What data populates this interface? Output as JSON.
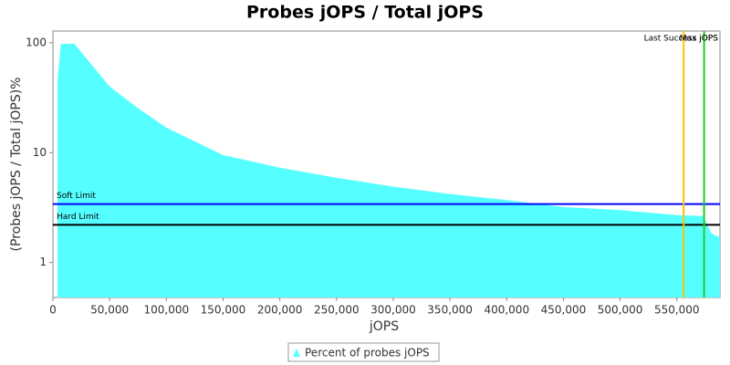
{
  "chart_data": {
    "type": "area",
    "title": "Probes jOPS / Total jOPS",
    "x_label": "jOPS",
    "y_label": "(Probes jOPS / Total jOPS)%",
    "log_y": true,
    "xlim": [
      0,
      588000
    ],
    "ylim": [
      0.48,
      128
    ],
    "xticks": [
      0,
      {
        "value": 50000,
        "label": "50,000"
      },
      {
        "value": 100000,
        "label": "100,000"
      },
      {
        "value": 150000,
        "label": "150,000"
      },
      {
        "value": 200000,
        "label": "200,000"
      },
      {
        "value": 250000,
        "label": "250,000"
      },
      {
        "value": 300000,
        "label": "300,000"
      },
      {
        "value": 350000,
        "label": "350,000"
      },
      {
        "value": 400000,
        "label": "400,000"
      },
      {
        "value": 450000,
        "label": "450,000"
      },
      {
        "value": 500000,
        "label": "500,000"
      },
      {
        "value": 550000,
        "label": "550,000"
      }
    ],
    "yticks": [
      1,
      10,
      100
    ],
    "series": [
      {
        "name": "Percent of probes jOPS",
        "color": "#55ffff",
        "x": [
          4000,
          7000,
          19000,
          30000,
          50000,
          74000,
          100000,
          150000,
          200000,
          250000,
          300000,
          350000,
          400000,
          450000,
          500000,
          550000,
          573000,
          580000,
          583000,
          588000
        ],
        "values": [
          44,
          98,
          98,
          71,
          40,
          25.8,
          16.9,
          9.5,
          7.3,
          5.9,
          4.9,
          4.2,
          3.7,
          3.2,
          3.0,
          2.7,
          2.65,
          1.88,
          1.77,
          1.7
        ]
      }
    ],
    "hlines": [
      {
        "name": "Soft Limit",
        "value": 3.4,
        "color": "#0000ff"
      },
      {
        "name": "Hard Limit",
        "value": 2.2,
        "color": "#000000"
      }
    ],
    "vlines": [
      {
        "name": "Last Success jOPS",
        "value": 556000,
        "color": "#ffc000"
      },
      {
        "name": "Max jOPS",
        "value": 574000,
        "color": "#22cc22"
      }
    ]
  }
}
